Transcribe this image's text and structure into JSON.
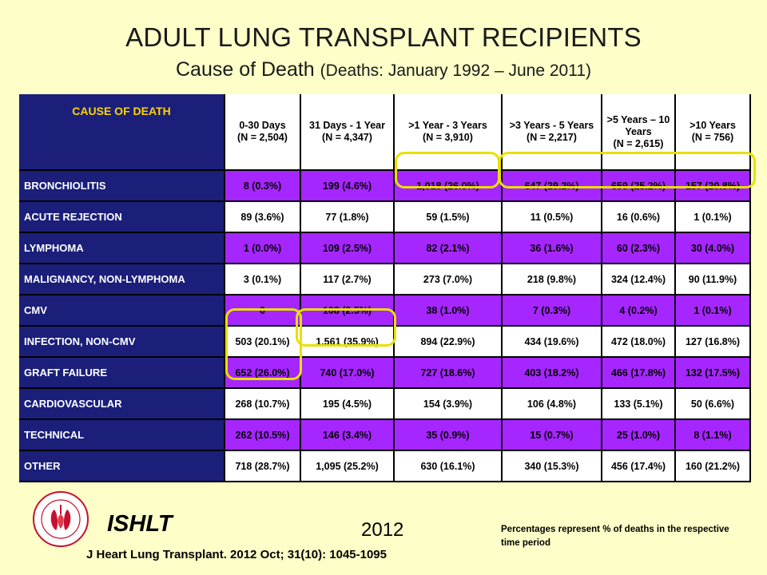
{
  "title": "ADULT LUNG TRANSPLANT RECIPIENTS",
  "subtitle_main": "Cause of Death",
  "subtitle_paren": "(Deaths: January 1992 – June 2011)",
  "table": {
    "cause_header": "CAUSE OF DEATH",
    "columns": [
      {
        "line1": "0-30 Days",
        "line2": "(N = 2,504)"
      },
      {
        "line1": "31 Days - 1 Year",
        "line2": "(N = 4,347)"
      },
      {
        "line1": ">1 Year - 3 Years",
        "line2": "(N = 3,910)"
      },
      {
        "line1": ">3 Years - 5 Years",
        "line2": "(N = 2,217)"
      },
      {
        "line1": ">5 Years – 10 Years",
        "line2": "(N = 2,615)"
      },
      {
        "line1": ">10 Years",
        "line2": "(N = 756)"
      }
    ],
    "rows": [
      {
        "cause": "BRONCHIOLITIS",
        "values": [
          "8 (0.3%)",
          "199 (4.6%)",
          "1,018 (26.0%)",
          "647 (29.2%)",
          "659 (25.2%)",
          "157 (20.8%)"
        ]
      },
      {
        "cause": "ACUTE REJECTION",
        "values": [
          "89 (3.6%)",
          "77 (1.8%)",
          "59 (1.5%)",
          "11 (0.5%)",
          "16 (0.6%)",
          "1 (0.1%)"
        ]
      },
      {
        "cause": "LYMPHOMA",
        "values": [
          "1 (0.0%)",
          "109 (2.5%)",
          "82 (2.1%)",
          "36 (1.6%)",
          "60 (2.3%)",
          "30 (4.0%)"
        ]
      },
      {
        "cause": "MALIGNANCY, NON-LYMPHOMA",
        "values": [
          "3 (0.1%)",
          "117 (2.7%)",
          "273 (7.0%)",
          "218 (9.8%)",
          "324 (12.4%)",
          "90 (11.9%)"
        ]
      },
      {
        "cause": "CMV",
        "values": [
          "0",
          "108 (2.5%)",
          "38 (1.0%)",
          "7 (0.3%)",
          "4 (0.2%)",
          "1 (0.1%)"
        ]
      },
      {
        "cause": "INFECTION, NON-CMV",
        "values": [
          "503 (20.1%)",
          "1,561 (35.9%)",
          "894 (22.9%)",
          "434 (19.6%)",
          "472 (18.0%)",
          "127 (16.8%)"
        ]
      },
      {
        "cause": "GRAFT FAILURE",
        "values": [
          "652 (26.0%)",
          "740 (17.0%)",
          "727 (18.6%)",
          "403 (18.2%)",
          "466 (17.8%)",
          "132 (17.5%)"
        ]
      },
      {
        "cause": "CARDIOVASCULAR",
        "values": [
          "268 (10.7%)",
          "195 (4.5%)",
          "154 (3.9%)",
          "106 (4.8%)",
          "133 (5.1%)",
          "50 (6.6%)"
        ]
      },
      {
        "cause": "TECHNICAL",
        "values": [
          "262 (10.5%)",
          "146 (3.4%)",
          "35 (0.9%)",
          "15 (0.7%)",
          "25 (1.0%)",
          "8 (1.1%)"
        ]
      },
      {
        "cause": "OTHER",
        "values": [
          "718 (28.7%)",
          "1,095 (25.2%)",
          "630 (16.1%)",
          "340 (15.3%)",
          "456 (17.4%)",
          "160 (21.2%)"
        ]
      }
    ]
  },
  "footer": {
    "org": "ISHLT",
    "year": "2012",
    "citation": "J Heart Lung Transplant. 2012 Oct; 31(10): 1045-1095",
    "note": "Percentages represent % of deaths in the respective time period",
    "logo_text": "INTERNATIONAL SOCIETY FOR HEART & LUNG TRANSPLANTATION"
  },
  "colors": {
    "background": "#fefec8",
    "header_navy": "#1b1f7a",
    "header_text_yellow": "#ffd400",
    "row_purple": "#a626ff",
    "highlight": "#e8e000"
  }
}
